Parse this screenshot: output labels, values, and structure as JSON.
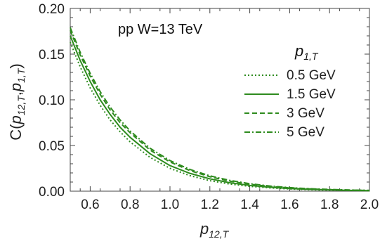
{
  "chart_data": {
    "type": "line",
    "annotation": "pp W=13 TeV",
    "xlabel": {
      "main": "p",
      "sub": "12,T"
    },
    "ylabel": {
      "prefix": "C(",
      "p1": "p",
      "p1_sub": "12,T",
      "sep": ",",
      "p2": "p",
      "p2_sub": "1,T",
      "suffix": ")"
    },
    "xlim": [
      0.5,
      2.0
    ],
    "ylim": [
      0.0,
      0.2
    ],
    "x_ticks": [
      0.6,
      0.8,
      1.0,
      1.2,
      1.4,
      1.6,
      1.8,
      2.0
    ],
    "x_tick_labels": [
      "0.6",
      "0.8",
      "1.0",
      "1.2",
      "1.4",
      "1.6",
      "1.8",
      "2.0"
    ],
    "y_ticks": [
      0.0,
      0.05,
      0.1,
      0.15,
      0.2
    ],
    "y_tick_labels": [
      "0.00",
      "0.05",
      "0.10",
      "0.15",
      "0.20"
    ],
    "legend": {
      "title_main": "p",
      "title_sub": "1,T",
      "placement": "right"
    },
    "color": "#2e8b1e",
    "x": [
      0.5,
      0.55,
      0.6,
      0.65,
      0.7,
      0.75,
      0.8,
      0.9,
      1.0,
      1.1,
      1.2,
      1.3,
      1.4,
      1.5,
      1.6,
      1.7,
      1.8,
      1.9,
      2.0
    ],
    "series": [
      {
        "name": "0.5 GeV",
        "dash": "dotted",
        "values": [
          0.163,
          0.136,
          0.113,
          0.094,
          0.078,
          0.065,
          0.054,
          0.037,
          0.025,
          0.017,
          0.0115,
          0.0078,
          0.0053,
          0.0036,
          0.0024,
          0.0016,
          0.0011,
          0.0007,
          0.0005
        ]
      },
      {
        "name": "1.5 GeV",
        "dash": "solid",
        "values": [
          0.17,
          0.143,
          0.12,
          0.1,
          0.084,
          0.07,
          0.059,
          0.041,
          0.028,
          0.0195,
          0.0135,
          0.0092,
          0.0063,
          0.0043,
          0.0029,
          0.002,
          0.0014,
          0.0009,
          0.0006
        ]
      },
      {
        "name": "3 GeV",
        "dash": "dashed",
        "values": [
          0.176,
          0.149,
          0.126,
          0.106,
          0.089,
          0.075,
          0.064,
          0.045,
          0.032,
          0.0225,
          0.0158,
          0.011,
          0.0076,
          0.0052,
          0.0036,
          0.0025,
          0.0017,
          0.0012,
          0.0008
        ]
      },
      {
        "name": "5 GeV",
        "dash": "dashdot",
        "values": [
          0.179,
          0.152,
          0.129,
          0.109,
          0.092,
          0.078,
          0.066,
          0.047,
          0.0335,
          0.0238,
          0.0168,
          0.0118,
          0.0082,
          0.0057,
          0.0039,
          0.0027,
          0.0019,
          0.0013,
          0.0009
        ]
      }
    ]
  }
}
